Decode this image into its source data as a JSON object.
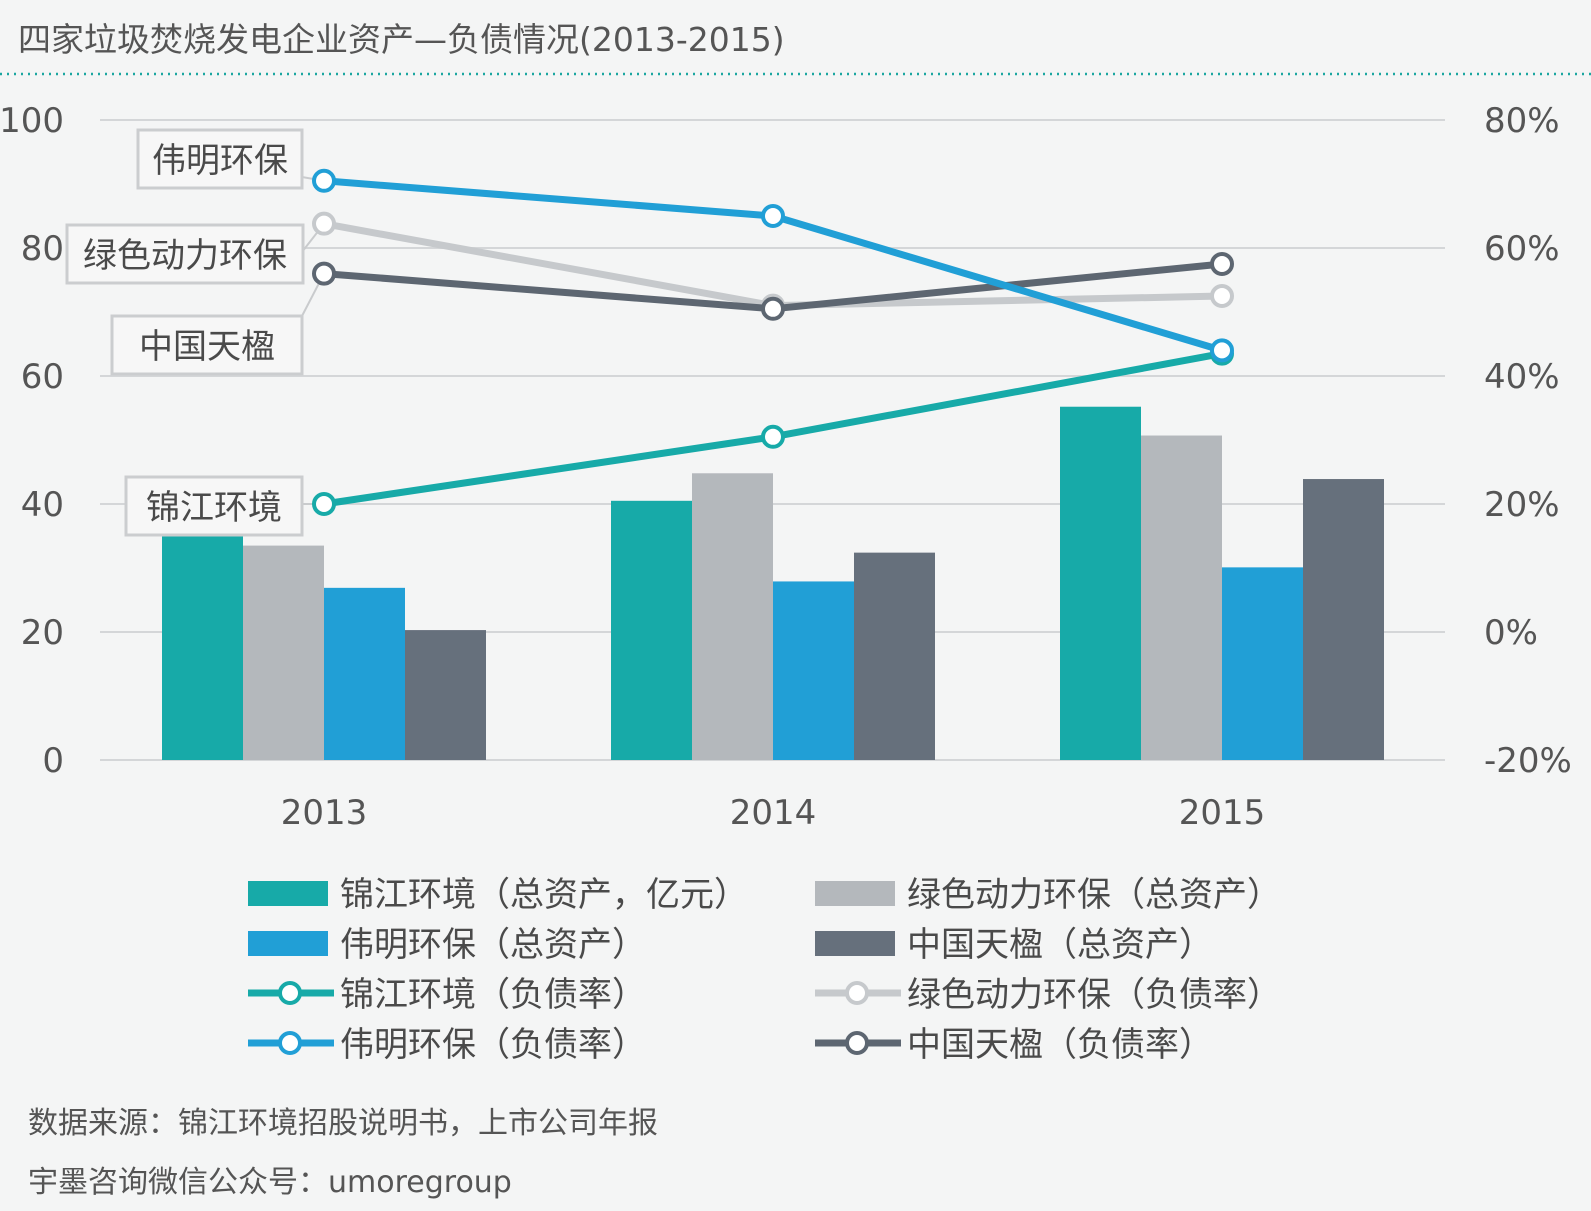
{
  "chart_data": {
    "type": "bar",
    "title": "四家垃圾焚烧发电企业资产—负债情况(2013-2015)",
    "categories": [
      "2013",
      "2014",
      "2015"
    ],
    "y_left": {
      "ylim": [
        0,
        100
      ],
      "ticks": [
        "0",
        "20",
        "40",
        "60",
        "80",
        "100"
      ]
    },
    "y_right": {
      "ylim": [
        -20,
        80
      ],
      "ticks": [
        "-20%",
        "0%",
        "20%",
        "40%",
        "60%",
        "80%"
      ]
    },
    "grid": true,
    "legend_position": "bottom",
    "bar_series": [
      {
        "name": "锦江环境（总资产，亿元）",
        "legend": "锦江环境（总资产，亿元）",
        "color": "#17aaa8",
        "values": [
          36,
          40.5,
          55.2
        ]
      },
      {
        "name": "绿色动力环保（总资产）",
        "legend": "绿色动力环保（总资产）",
        "color": "#b4b8bc",
        "values": [
          33.5,
          44.8,
          50.7
        ]
      },
      {
        "name": "伟明环保（总资产）",
        "legend": "伟明环保（总资产）",
        "color": "#219fd6",
        "values": [
          26.9,
          27.9,
          30.1
        ]
      },
      {
        "name": "中国天楹（总资产）",
        "legend": "中国天楹（总资产）",
        "color": "#66707c",
        "values": [
          20.3,
          32.4,
          43.9
        ]
      }
    ],
    "line_series": [
      {
        "name": "锦江环境",
        "legend": "锦江环境（负债率）",
        "color": "#17aaa8",
        "values": [
          20,
          30.5,
          43.5
        ]
      },
      {
        "name": "绿色动力环保",
        "legend": "绿色动力环保（负债率）",
        "color": "#c6c9cc",
        "values": [
          63.8,
          51,
          52.5
        ]
      },
      {
        "name": "伟明环保",
        "legend": "伟明环保（负债率）",
        "color": "#219fd6",
        "values": [
          70.5,
          65,
          44
        ]
      },
      {
        "name": "中国天楹",
        "legend": "中国天楹（负债率）",
        "color": "#5d6671",
        "values": [
          56,
          50.5,
          57.5
        ]
      }
    ],
    "annotations": [
      "伟明环保",
      "绿色动力环保",
      "中国天楹",
      "锦江环境"
    ]
  },
  "footer": {
    "source": "数据来源：锦江环境招股说明书，上市公司年报",
    "account": "宇墨咨询微信公众号：umoregroup"
  }
}
